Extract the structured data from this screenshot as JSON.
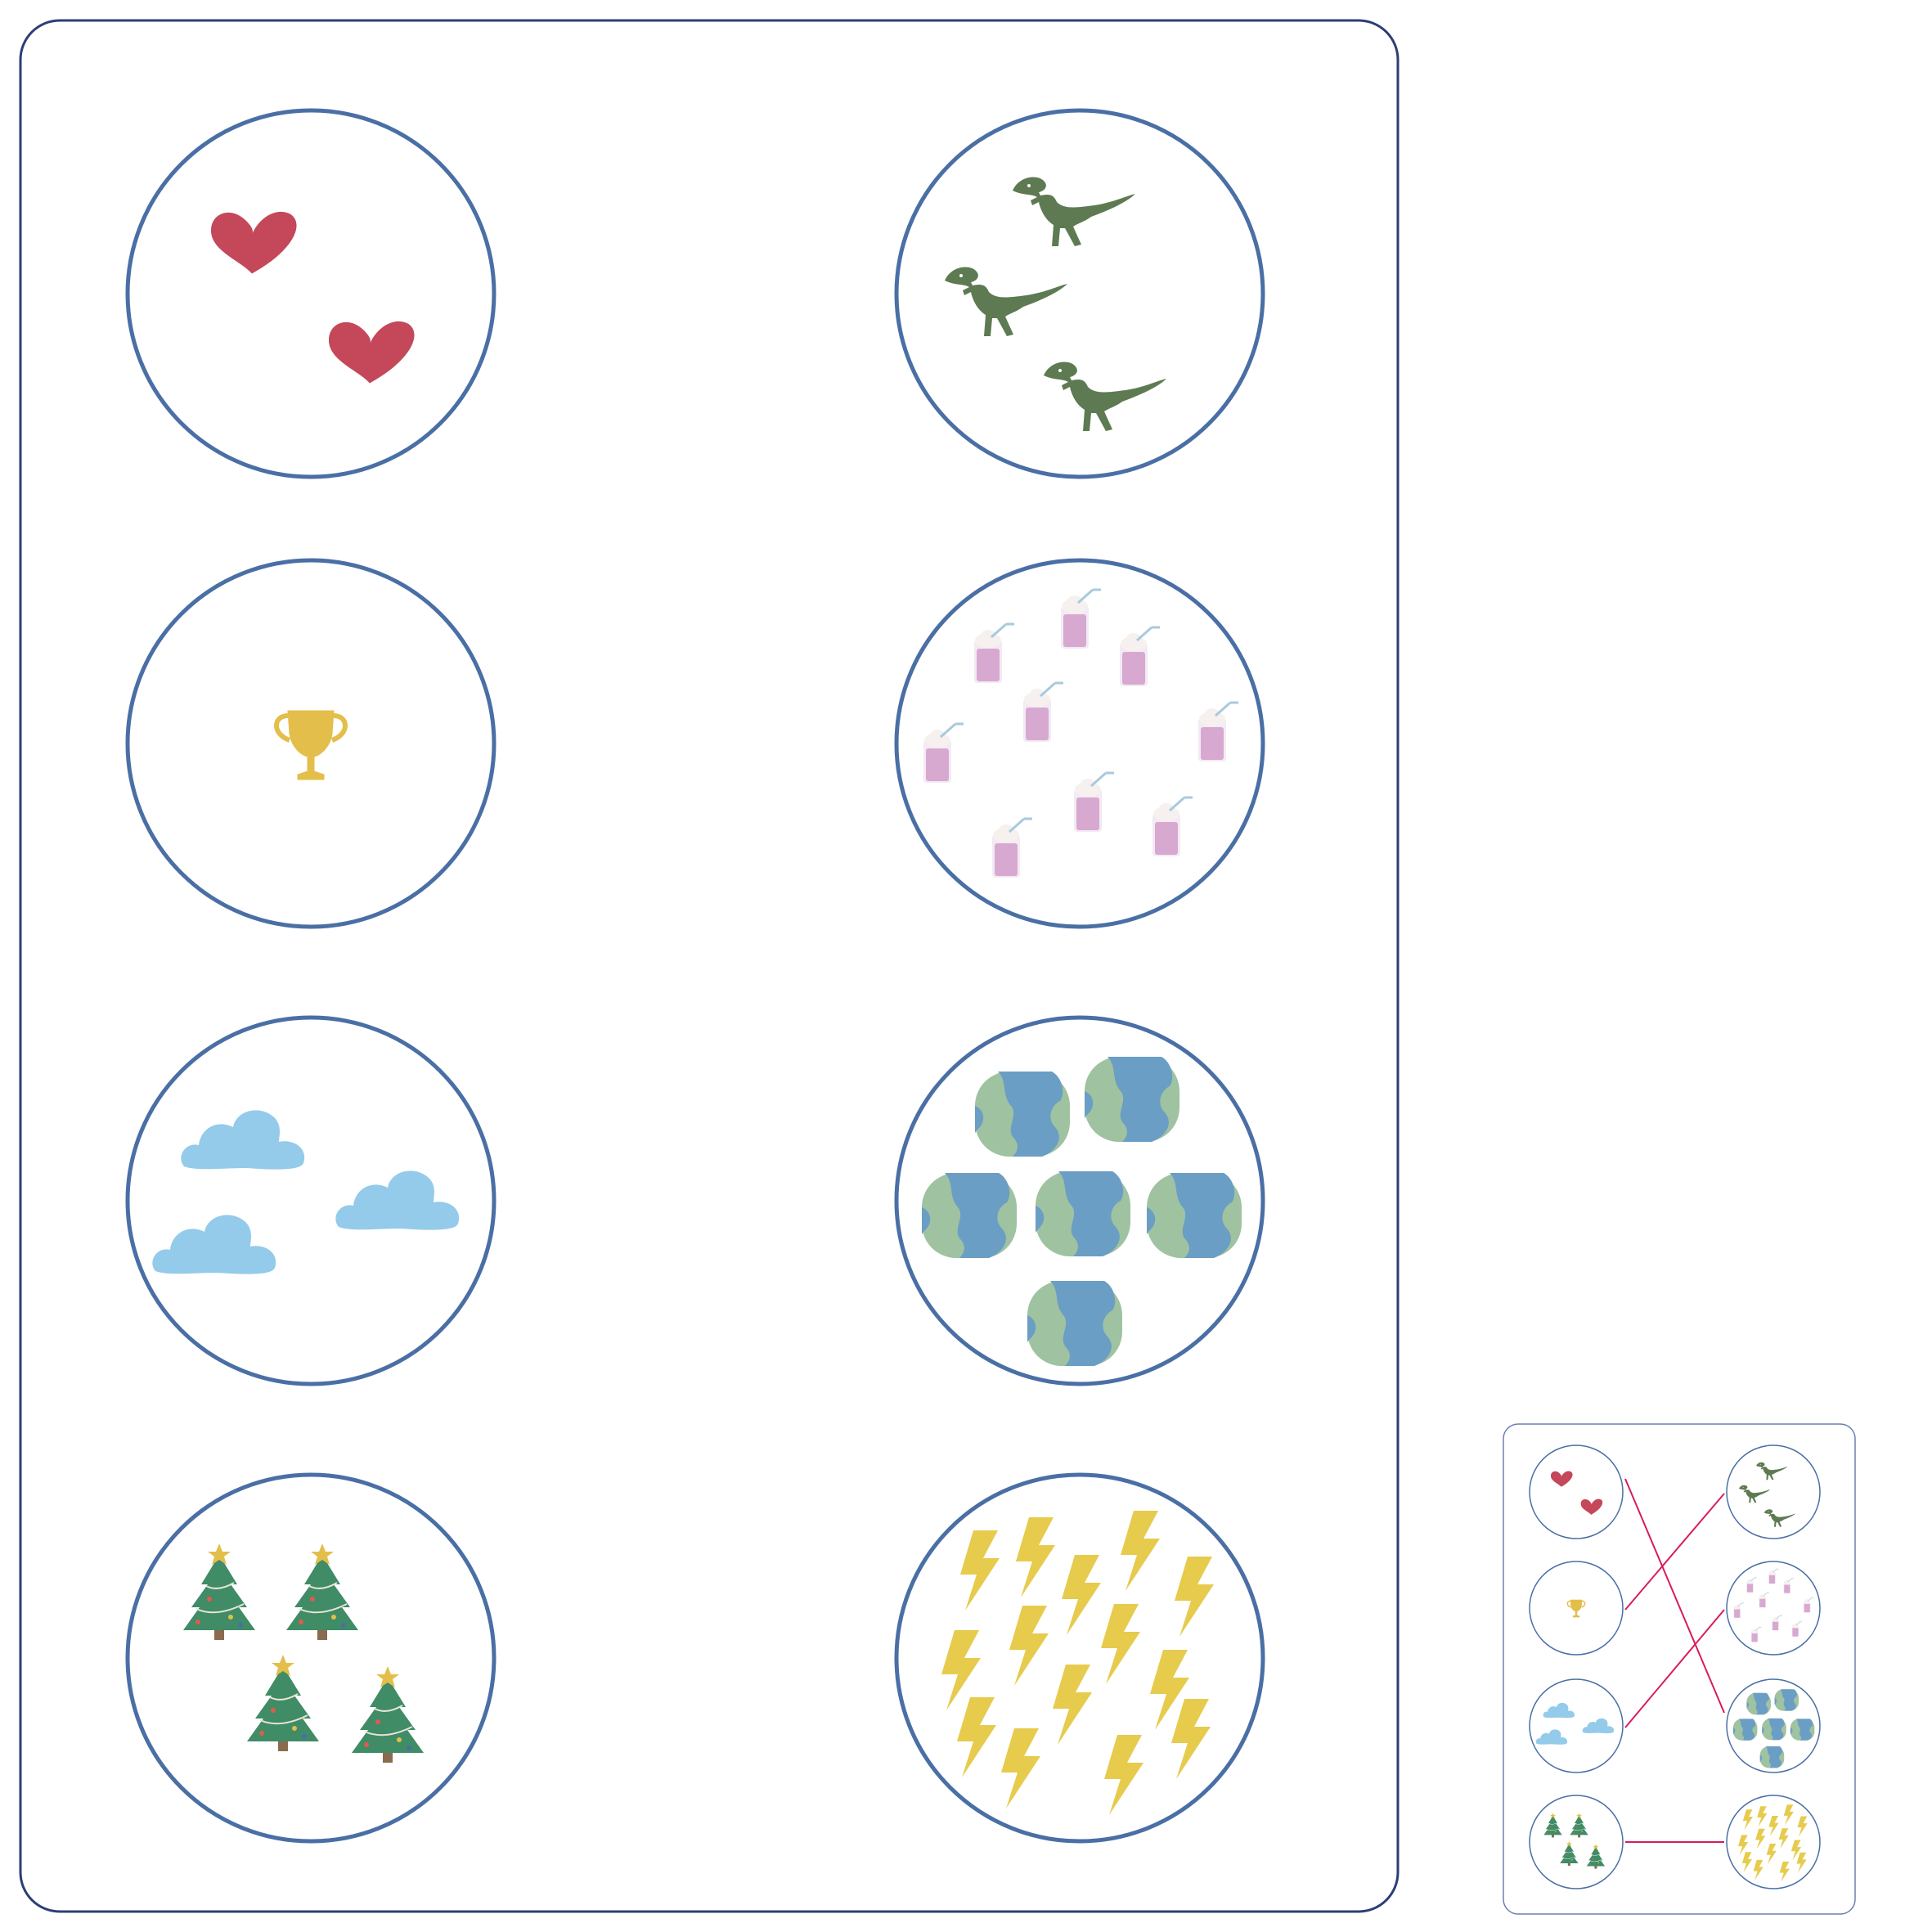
{
  "worksheet": {
    "pairs": [
      {
        "left": {
          "icon": "heart-icon",
          "count": 2,
          "color": "#c4475a"
        },
        "right": {
          "icon": "dinosaur-icon",
          "count": 3,
          "color": "#5e7a52"
        }
      },
      {
        "left": {
          "icon": "trophy-icon",
          "count": 1,
          "color": "#e3be4a"
        },
        "right": {
          "icon": "milkshake-icon",
          "count": 9,
          "color": "#d7a9d0"
        }
      },
      {
        "left": {
          "icon": "cloud-icon",
          "count": 3,
          "color": "#94cbea"
        },
        "right": {
          "icon": "earth-icon",
          "count": 6,
          "color": "#6b9ec4"
        }
      },
      {
        "left": {
          "icon": "christmas-tree-icon",
          "count": 4,
          "color": "#3f8c66"
        },
        "right": {
          "icon": "lightning-icon",
          "count": 14,
          "color": "#e6cb4d"
        }
      }
    ],
    "answer_key": {
      "connections": [
        {
          "from": "heart-icon",
          "to": "earth-icon"
        },
        {
          "from": "trophy-icon",
          "to": "dinosaur-icon"
        },
        {
          "from": "cloud-icon",
          "to": "milkshake-icon"
        },
        {
          "from": "christmas-tree-icon",
          "to": "lightning-icon"
        }
      ],
      "line_color": "#d81b60"
    },
    "colors": {
      "circle_stroke": "#4a6fa5",
      "card_border": "#2c3e75",
      "key_border": "#6d7fb3"
    }
  }
}
